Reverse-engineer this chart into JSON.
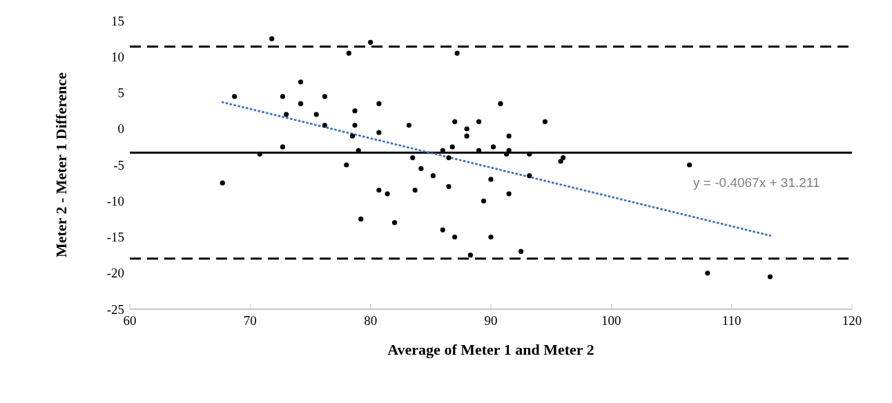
{
  "chart_data": {
    "type": "scatter",
    "xlabel": "Average of Meter 1 and Meter 2",
    "ylabel": "Meter 2 - Meter 1 Difference",
    "xlim": [
      60,
      120
    ],
    "xticks": [
      60,
      70,
      80,
      90,
      100,
      110,
      120
    ],
    "ylim": [
      -25,
      15
    ],
    "yticks": [
      -25,
      -20,
      -15,
      -10,
      -5,
      0,
      5,
      10,
      15
    ],
    "series": [
      {
        "color": "#000000",
        "marker": "circle",
        "x": [
          67.7,
          68.7,
          70.8,
          71.8,
          72.7,
          72.7,
          73,
          74.2,
          74.2,
          75.5,
          76.2,
          76.2,
          78,
          78.2,
          78.5,
          78.7,
          78.7,
          79,
          79.2,
          80,
          80.7,
          80.7,
          80.7,
          81.4,
          82,
          83.2,
          83.5,
          83.7,
          84.2,
          85.2,
          86,
          86,
          86.5,
          86.5,
          86.8,
          87,
          87,
          87.2,
          88,
          88,
          88.3,
          89,
          89,
          89.4,
          90,
          90,
          90.2,
          90.8,
          91.3,
          91.5,
          91.5,
          91.5,
          92.5,
          93.2,
          93.2,
          94.5,
          95.8,
          96,
          106.5,
          108,
          113.2
        ],
        "values": [
          -7.5,
          4.5,
          -3.5,
          12.5,
          4.5,
          -2.5,
          2,
          6.5,
          3.5,
          2,
          4.5,
          0.5,
          -5,
          10.5,
          -1,
          2.5,
          0.5,
          -3,
          -12.5,
          12,
          3.5,
          -0.5,
          -8.5,
          -9,
          -13,
          0.5,
          -4,
          -8.5,
          -5.5,
          -6.5,
          -3,
          -14,
          -4,
          -8,
          -2.5,
          1,
          -15,
          10.5,
          0,
          -1,
          -17.5,
          1,
          -3,
          -10,
          -7,
          -15,
          -2.5,
          3.5,
          -3.5,
          -3,
          -1,
          -9,
          -17,
          -3.5,
          -6.5,
          1,
          -4.5,
          -4,
          -5,
          -20,
          -20.5
        ]
      },
      {
        "type": "line",
        "color": "#4472c4",
        "marker": "none",
        "line_style": "dotted",
        "x": [
          67.7,
          113.2
        ],
        "values": [
          3.7,
          -14.8
        ]
      }
    ],
    "ref_lines": [
      {
        "axis": "y",
        "value": 11.4,
        "color": "#000000",
        "line_style": "dashed"
      },
      {
        "axis": "y",
        "value": -3.3,
        "color": "#000000",
        "line_style": "solid"
      },
      {
        "axis": "y",
        "value": -18,
        "color": "#000000",
        "line_style": "dashed"
      }
    ],
    "annotations": [
      "y = -0.4067x + 31.211"
    ]
  }
}
